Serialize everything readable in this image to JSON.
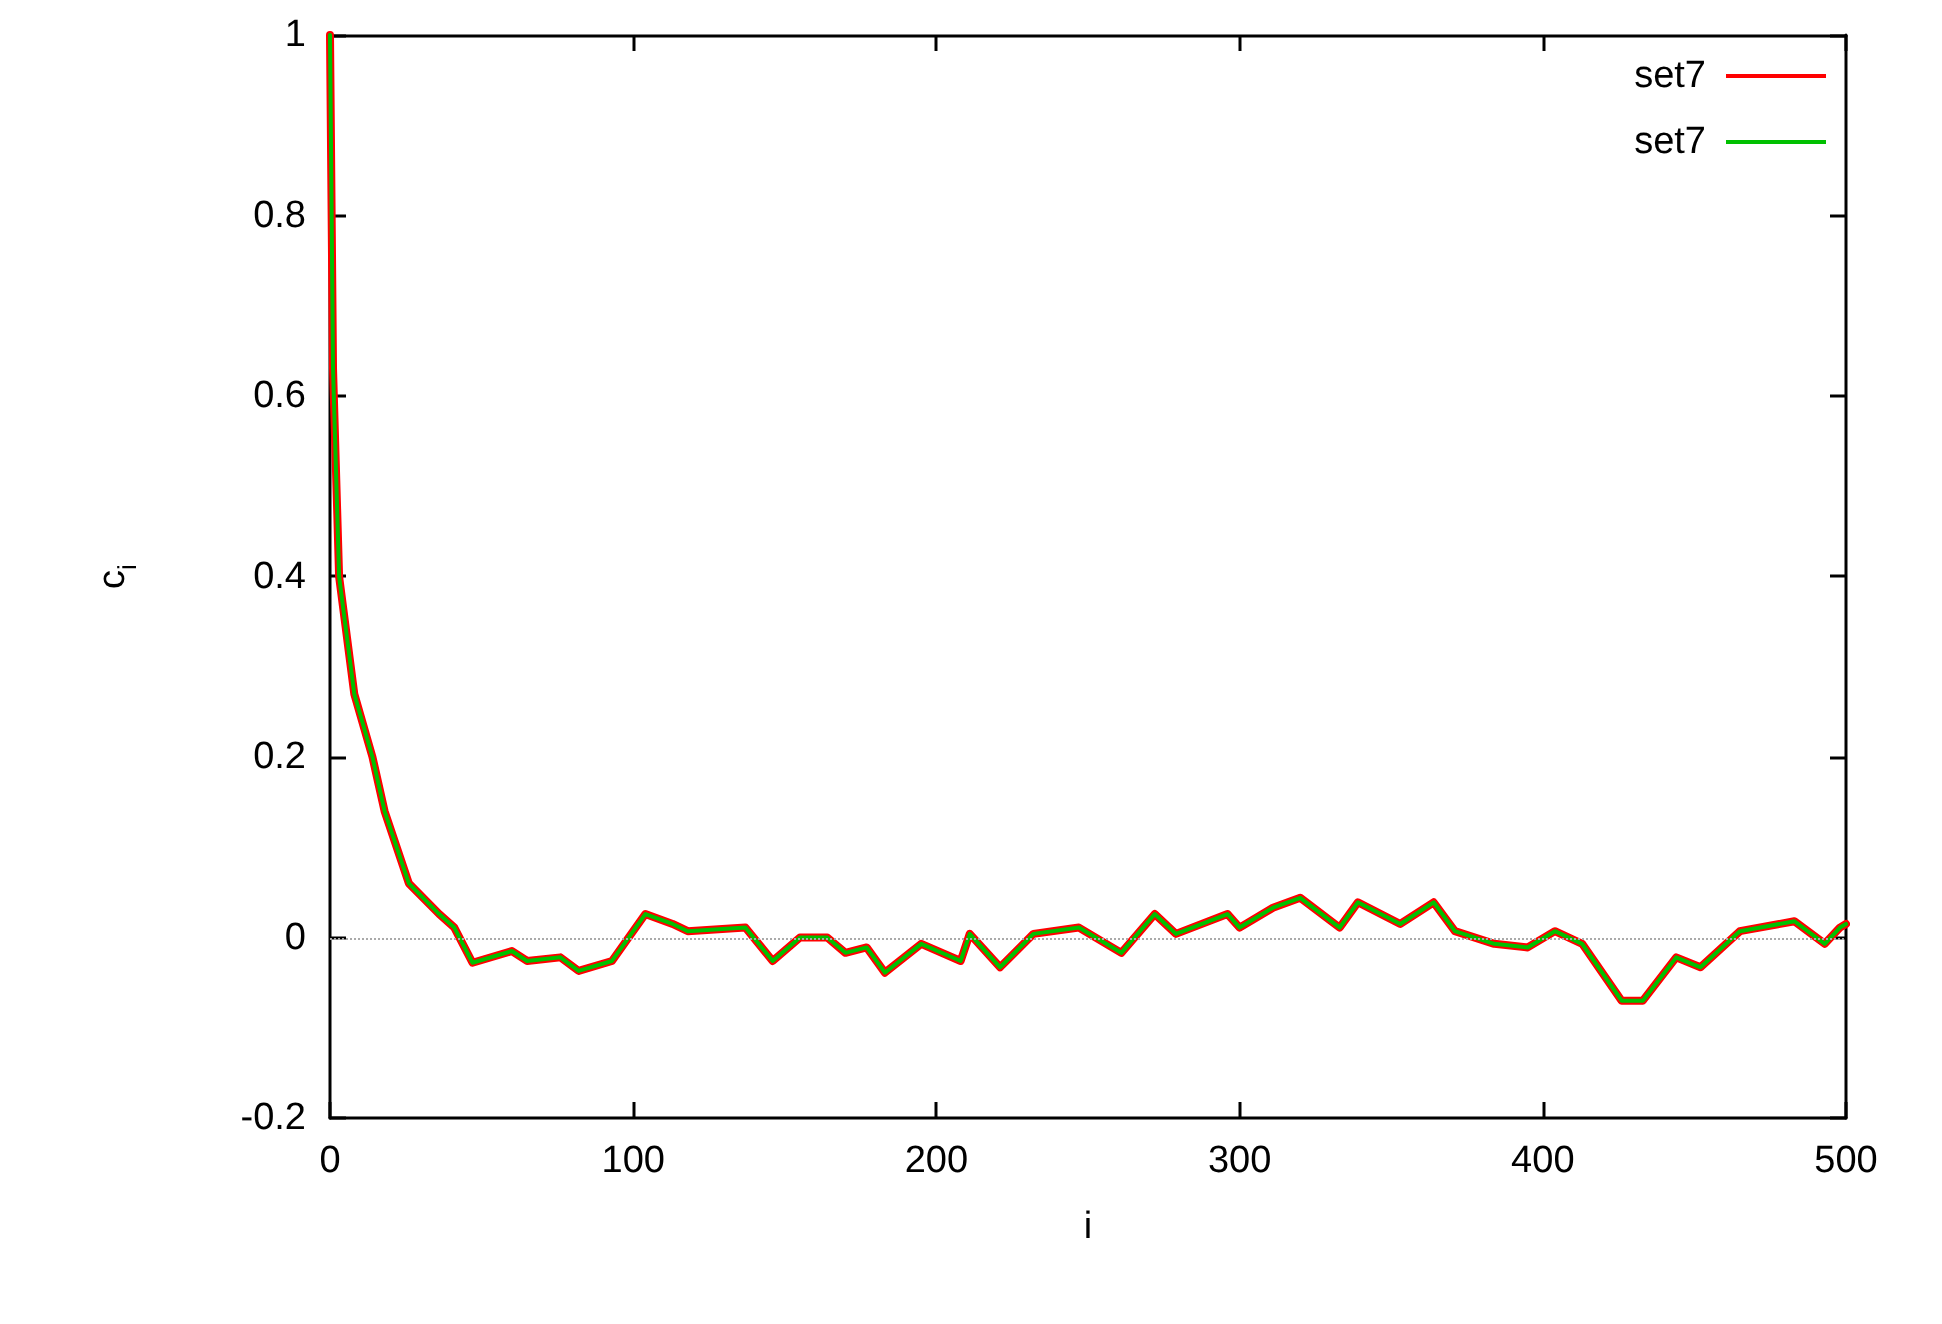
{
  "chart_data": {
    "type": "line",
    "xlabel": "i",
    "ylabel": "c$_{i}$",
    "x": [
      0,
      1,
      3,
      8,
      14,
      18,
      26,
      36,
      41,
      47,
      60,
      65,
      76,
      82,
      93,
      104,
      113,
      118,
      137,
      146,
      155,
      164,
      170,
      177,
      183,
      195,
      208,
      211,
      221,
      232,
      247,
      261,
      272,
      279,
      296,
      300,
      311,
      320,
      333,
      339,
      353,
      364,
      371,
      384,
      395,
      404,
      413,
      426,
      433,
      444,
      452,
      465,
      483,
      493,
      498,
      500
    ],
    "series": [
      {
        "name": "set7",
        "color": "#ff0000",
        "values": [
          1.0,
          0.63,
          0.4,
          0.27,
          0.2,
          0.14,
          0.06,
          0.026,
          0.011,
          -0.028,
          -0.015,
          -0.026,
          -0.022,
          -0.037,
          -0.026,
          0.026,
          0.015,
          0.007,
          0.011,
          -0.026,
          0,
          0,
          -0.017,
          -0.011,
          -0.039,
          -0.007,
          -0.026,
          0.004,
          -0.033,
          0.004,
          0.011,
          -0.017,
          0.026,
          0.004,
          0.026,
          0.011,
          0.033,
          0.044,
          0.011,
          0.039,
          0.015,
          0.039,
          0.007,
          -0.007,
          -0.011,
          0.007,
          -0.007,
          -0.07,
          -0.07,
          -0.022,
          -0.033,
          0.007,
          0.018,
          -0.007,
          0.011,
          0.015
        ]
      },
      {
        "name": "set7",
        "color": "#00c000",
        "values": [
          1.0,
          0.63,
          0.4,
          0.27,
          0.2,
          0.14,
          0.06,
          0.026,
          0.011,
          -0.028,
          -0.015,
          -0.026,
          -0.022,
          -0.037,
          -0.026,
          0.026,
          0.015,
          0.007,
          0.011,
          -0.026,
          0,
          0,
          -0.017,
          -0.011,
          -0.039,
          -0.007,
          -0.026,
          0.004,
          -0.033,
          0.004,
          0.011,
          -0.017,
          0.026,
          0.004,
          0.026,
          0.011,
          0.033,
          0.044,
          0.011,
          0.039,
          0.015,
          0.039,
          0.007,
          -0.007,
          -0.011,
          0.007,
          -0.007,
          -0.07,
          -0.07,
          -0.022,
          -0.033,
          0.007,
          0.018,
          -0.007,
          0.011,
          0.015
        ]
      }
    ],
    "xlim": [
      0,
      500
    ],
    "xticks": [
      0,
      100,
      200,
      300,
      400,
      500
    ],
    "ylim": [
      -0.2,
      1
    ],
    "yticks": [
      -0.2,
      0,
      0.2,
      0.4,
      0.6,
      0.8,
      1
    ],
    "ref_lines": [
      {
        "axis": "y",
        "value": 0,
        "color": "#aaaaaa",
        "line_style": "dotted"
      }
    ],
    "grid": false,
    "legend": "top right",
    "marker": "none",
    "line_style": "solid"
  }
}
